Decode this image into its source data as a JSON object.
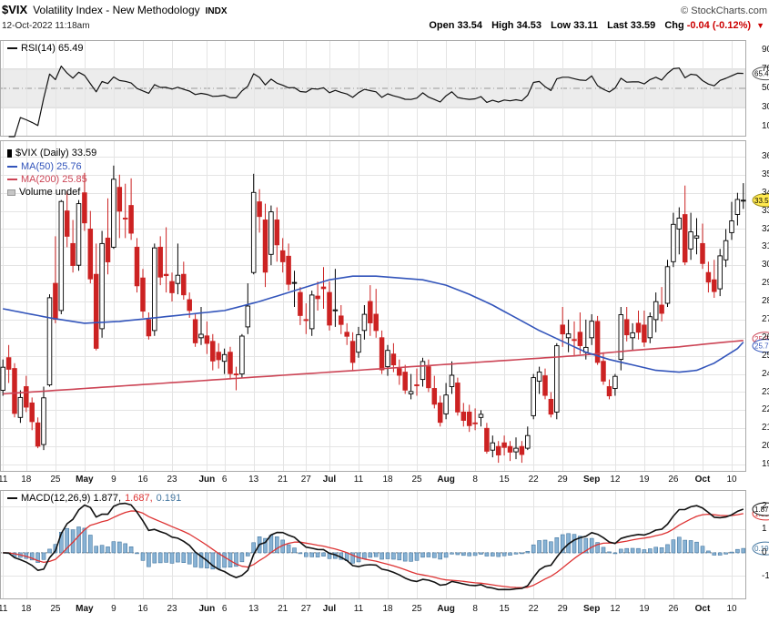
{
  "header": {
    "symbol": "$VIX",
    "name": "Volatility Index - New Methodology",
    "exchange": "INDX",
    "copyright": "© StockCharts.com",
    "timestamp": "12-Oct-2022 11:18am",
    "quote": {
      "open_label": "Open",
      "open": "33.54",
      "high_label": "High",
      "high": "34.53",
      "low_label": "Low",
      "low": "33.11",
      "last_label": "Last",
      "last": "33.59",
      "chg_label": "Chg",
      "chg": "-0.04 (-0.12%)",
      "arrow": "▼"
    }
  },
  "rsi_panel": {
    "label": "RSI(14) 65.49",
    "value": "65.49"
  },
  "main_panel": {
    "legend": {
      "series": "$VIX (Daily) 33.59",
      "ma50": "MA(50) 25.76",
      "ma200": "MA(200) 25.85",
      "volume": "Volume undef"
    },
    "last_price": "33.59",
    "ma50_value": "25.76",
    "ma200_value": "25.85"
  },
  "macd_panel": {
    "label": "MACD(12,26,9) 1.877,",
    "signal": "1.687,",
    "hist": "0.191",
    "values": [
      "1.877",
      "1.687",
      "0.191"
    ]
  },
  "colors": {
    "up": "#000000",
    "down": "#cc2222",
    "ma50": "#3355bb",
    "ma200": "#cc4455",
    "rsi": "#111111",
    "macd_line": "#111111",
    "signal": "#dd3333",
    "hist_fill": "#88b2d4",
    "hist_stroke": "#4477a1",
    "grid": "#e4e4e4",
    "band": "#ececec",
    "band_edge": "#d5d5d5",
    "mid_line": "#999999",
    "border": "#aaaaaa",
    "zero_line": "#777777",
    "last_bubble_fill": "#ffe94f",
    "last_bubble_stroke": "#a09020",
    "chg": "#cc0000"
  },
  "chart_data": {
    "type": "candlestick",
    "title": "$VIX (Daily)",
    "timeframe": "Daily",
    "indicators": {
      "rsi": "RSI(14)",
      "macd": "MACD(12,26,9)",
      "overlays": [
        "MA(50)",
        "MA(200)"
      ]
    },
    "axes": {
      "main": [
        36,
        35,
        34,
        33,
        32,
        31,
        30,
        29,
        28,
        27,
        26,
        25,
        24,
        23,
        22,
        21,
        20,
        19
      ],
      "rsi": [
        90,
        70,
        50,
        30,
        10
      ],
      "macd": [
        2,
        1,
        0,
        -1
      ],
      "rsi_band": [
        30,
        70
      ],
      "rsi_mid": 50
    },
    "x_ticks": [
      {
        "i": 0,
        "l": "11"
      },
      {
        "i": 4,
        "l": "18"
      },
      {
        "i": 9,
        "l": "25"
      },
      {
        "i": 14,
        "l": "May",
        "b": 1
      },
      {
        "i": 19,
        "l": "9"
      },
      {
        "i": 24,
        "l": "16"
      },
      {
        "i": 29,
        "l": "23"
      },
      {
        "i": 35,
        "l": "Jun",
        "b": 1
      },
      {
        "i": 38,
        "l": "6"
      },
      {
        "i": 43,
        "l": "13"
      },
      {
        "i": 48,
        "l": "21"
      },
      {
        "i": 52,
        "l": "27"
      },
      {
        "i": 56,
        "l": "Jul",
        "b": 1
      },
      {
        "i": 61,
        "l": "11"
      },
      {
        "i": 66,
        "l": "18"
      },
      {
        "i": 71,
        "l": "25"
      },
      {
        "i": 76,
        "l": "Aug",
        "b": 1
      },
      {
        "i": 81,
        "l": "8"
      },
      {
        "i": 86,
        "l": "15"
      },
      {
        "i": 91,
        "l": "22"
      },
      {
        "i": 96,
        "l": "29"
      },
      {
        "i": 101,
        "l": "Sep",
        "b": 1
      },
      {
        "i": 105,
        "l": "12"
      },
      {
        "i": 110,
        "l": "19"
      },
      {
        "i": 115,
        "l": "26"
      },
      {
        "i": 120,
        "l": "Oct",
        "b": 1
      },
      {
        "i": 125,
        "l": "10"
      }
    ],
    "overlays": {
      "ma50_points": [
        [
          0,
          27.6
        ],
        [
          8,
          27.1
        ],
        [
          14,
          26.8
        ],
        [
          20,
          26.9
        ],
        [
          26,
          27.1
        ],
        [
          32,
          27.3
        ],
        [
          38,
          27.5
        ],
        [
          44,
          28.0
        ],
        [
          50,
          28.6
        ],
        [
          56,
          29.2
        ],
        [
          60,
          29.4
        ],
        [
          64,
          29.4
        ],
        [
          68,
          29.3
        ],
        [
          72,
          29.2
        ],
        [
          76,
          28.9
        ],
        [
          80,
          28.4
        ],
        [
          84,
          27.8
        ],
        [
          88,
          27.1
        ],
        [
          92,
          26.4
        ],
        [
          96,
          25.8
        ],
        [
          100,
          25.2
        ],
        [
          104,
          24.8
        ],
        [
          108,
          24.5
        ],
        [
          112,
          24.2
        ],
        [
          116,
          24.1
        ],
        [
          119,
          24.2
        ],
        [
          122,
          24.6
        ],
        [
          124,
          25.0
        ],
        [
          126,
          25.4
        ],
        [
          127,
          25.76
        ]
      ],
      "ma200_points": [
        [
          0,
          22.9
        ],
        [
          14,
          23.2
        ],
        [
          28,
          23.5
        ],
        [
          42,
          23.8
        ],
        [
          56,
          24.1
        ],
        [
          70,
          24.4
        ],
        [
          84,
          24.7
        ],
        [
          98,
          25.0
        ],
        [
          108,
          25.3
        ],
        [
          116,
          25.5
        ],
        [
          122,
          25.7
        ],
        [
          127,
          25.85
        ]
      ]
    },
    "candles": [
      [
        "Apr 11",
        23.1,
        24.8,
        22.8,
        24.37
      ],
      [
        "Apr 12",
        24.9,
        25.6,
        23.5,
        24.26
      ],
      [
        "Apr 13",
        24.3,
        24.6,
        21.6,
        21.82
      ],
      [
        "Apr 14",
        21.6,
        23.1,
        21.3,
        22.7
      ],
      [
        "Apr 18",
        23.3,
        23.9,
        21.9,
        22.17
      ],
      [
        "Apr 19",
        22.4,
        22.7,
        20.9,
        21.37
      ],
      [
        "Apr 20",
        21.3,
        21.6,
        19.9,
        20.02
      ],
      [
        "Apr 21",
        20.1,
        23.3,
        19.8,
        22.68
      ],
      [
        "Apr 22",
        23.4,
        28.4,
        23.3,
        28.21
      ],
      [
        "Apr 25",
        29.0,
        31.6,
        26.8,
        27.02
      ],
      [
        "Apr 26",
        27.5,
        33.6,
        27.3,
        33.52
      ],
      [
        "Apr 27",
        33.0,
        34.1,
        31.0,
        31.6
      ],
      [
        "Apr 28",
        31.2,
        32.5,
        29.6,
        29.99
      ],
      [
        "Apr 29",
        30.0,
        33.6,
        29.7,
        33.4
      ],
      [
        "May 2",
        34.0,
        35.1,
        31.9,
        32.34
      ],
      [
        "May 3",
        32.0,
        33.0,
        29.0,
        29.25
      ],
      [
        "May 4",
        29.5,
        31.2,
        25.3,
        25.42
      ],
      [
        "May 5",
        26.5,
        31.9,
        26.0,
        31.2
      ],
      [
        "May 6",
        31.5,
        33.7,
        29.5,
        30.19
      ],
      [
        "May 9",
        31.0,
        35.5,
        30.9,
        34.75
      ],
      [
        "May 10",
        34.3,
        35.0,
        31.5,
        32.99
      ],
      [
        "May 11",
        32.6,
        34.5,
        31.5,
        32.56
      ],
      [
        "May 12",
        33.3,
        34.8,
        31.4,
        31.77
      ],
      [
        "May 13",
        31.0,
        31.5,
        28.5,
        28.87
      ],
      [
        "May 16",
        29.3,
        29.8,
        27.1,
        27.47
      ],
      [
        "May 17",
        27.0,
        27.4,
        25.9,
        26.1
      ],
      [
        "May 18",
        26.4,
        31.2,
        26.1,
        30.96
      ],
      [
        "May 19",
        31.0,
        31.6,
        28.9,
        29.35
      ],
      [
        "May 20",
        29.5,
        32.1,
        28.5,
        29.43
      ],
      [
        "May 23",
        29.1,
        29.6,
        28.0,
        28.48
      ],
      [
        "May 24",
        29.0,
        31.2,
        28.4,
        29.45
      ],
      [
        "May 25",
        29.5,
        30.2,
        28.1,
        28.37
      ],
      [
        "May 26",
        28.1,
        28.5,
        27.1,
        27.5
      ],
      [
        "May 27",
        27.0,
        27.3,
        25.5,
        25.72
      ],
      [
        "May 31",
        26.0,
        27.7,
        25.6,
        26.19
      ],
      [
        "Jun 1",
        26.1,
        26.9,
        25.1,
        25.69
      ],
      [
        "Jun 2",
        25.8,
        26.2,
        24.2,
        24.72
      ],
      [
        "Jun 3",
        25.2,
        25.7,
        24.3,
        24.79
      ],
      [
        "Jun 6",
        24.7,
        25.4,
        24.0,
        25.07
      ],
      [
        "Jun 7",
        25.2,
        25.5,
        23.7,
        24.02
      ],
      [
        "Jun 8",
        24.0,
        24.4,
        23.1,
        23.96
      ],
      [
        "Jun 9",
        24.0,
        26.2,
        23.8,
        26.09
      ],
      [
        "Jun 10",
        26.6,
        29.0,
        26.2,
        27.75
      ],
      [
        "Jun 13",
        29.6,
        35.05,
        29.5,
        34.02
      ],
      [
        "Jun 14",
        33.5,
        34.2,
        31.8,
        32.69
      ],
      [
        "Jun 15",
        32.5,
        33.4,
        28.8,
        29.62
      ],
      [
        "Jun 16",
        30.6,
        33.3,
        30.0,
        32.95
      ],
      [
        "Jun 17",
        32.5,
        33.2,
        30.2,
        31.13
      ],
      [
        "Jun 21",
        30.8,
        31.5,
        29.6,
        30.19
      ],
      [
        "Jun 22",
        30.5,
        31.2,
        28.6,
        28.95
      ],
      [
        "Jun 23",
        29.0,
        29.7,
        27.7,
        29.05
      ],
      [
        "Jun 24",
        28.5,
        28.8,
        26.7,
        27.23
      ],
      [
        "Jun 27",
        27.0,
        27.9,
        26.2,
        26.95
      ],
      [
        "Jun 28",
        26.5,
        28.6,
        26.1,
        28.36
      ],
      [
        "Jun 29",
        28.3,
        29.1,
        27.5,
        28.16
      ],
      [
        "Jun 30",
        28.8,
        29.9,
        27.6,
        28.71
      ],
      [
        "Jul 1",
        28.5,
        29.1,
        26.4,
        26.7
      ],
      [
        "Jul 5",
        27.5,
        29.8,
        26.6,
        27.54
      ],
      [
        "Jul 6",
        27.2,
        27.8,
        26.2,
        26.73
      ],
      [
        "Jul 7",
        26.3,
        26.8,
        25.6,
        26.08
      ],
      [
        "Jul 8",
        25.8,
        26.3,
        24.2,
        24.64
      ],
      [
        "Jul 11",
        25.2,
        26.6,
        24.9,
        26.17
      ],
      [
        "Jul 12",
        26.4,
        27.8,
        25.9,
        27.29
      ],
      [
        "Jul 13",
        28.0,
        28.9,
        26.1,
        26.82
      ],
      [
        "Jul 14",
        27.3,
        28.7,
        26.0,
        26.4
      ],
      [
        "Jul 15",
        26.0,
        26.4,
        24.0,
        24.23
      ],
      [
        "Jul 18",
        24.4,
        25.6,
        23.9,
        25.3
      ],
      [
        "Jul 19",
        25.1,
        25.7,
        24.1,
        24.5
      ],
      [
        "Jul 20",
        24.3,
        24.8,
        23.4,
        23.93
      ],
      [
        "Jul 21",
        24.1,
        24.5,
        22.9,
        23.11
      ],
      [
        "Jul 22",
        22.9,
        24.0,
        22.6,
        23.03
      ],
      [
        "Jul 25",
        23.4,
        24.3,
        22.8,
        23.36
      ],
      [
        "Jul 26",
        23.7,
        24.9,
        23.3,
        24.69
      ],
      [
        "Jul 27",
        24.4,
        24.8,
        23.0,
        23.24
      ],
      [
        "Jul 28",
        23.2,
        23.9,
        22.1,
        22.33
      ],
      [
        "Jul 29",
        22.4,
        22.8,
        21.1,
        21.33
      ],
      [
        "Aug 1",
        21.8,
        23.5,
        21.5,
        22.84
      ],
      [
        "Aug 2",
        23.3,
        24.7,
        22.9,
        23.93
      ],
      [
        "Aug 3",
        23.5,
        23.8,
        21.7,
        21.9
      ],
      [
        "Aug 4",
        21.9,
        22.4,
        21.1,
        21.44
      ],
      [
        "Aug 5",
        21.9,
        22.3,
        20.8,
        21.15
      ],
      [
        "Aug 8",
        21.3,
        22.1,
        20.9,
        21.29
      ],
      [
        "Aug 9",
        21.6,
        22.0,
        21.1,
        21.77
      ],
      [
        "Aug 10",
        21.0,
        21.3,
        19.6,
        19.74
      ],
      [
        "Aug 11",
        19.8,
        20.6,
        19.4,
        20.2
      ],
      [
        "Aug 12",
        20.0,
        20.3,
        19.1,
        19.53
      ],
      [
        "Aug 15",
        20.2,
        20.6,
        19.5,
        19.95
      ],
      [
        "Aug 16",
        20.0,
        20.3,
        19.2,
        19.69
      ],
      [
        "Aug 17",
        19.7,
        20.5,
        19.3,
        19.9
      ],
      [
        "Aug 18",
        20.0,
        20.3,
        19.1,
        19.56
      ],
      [
        "Aug 19",
        19.9,
        21.1,
        19.8,
        20.6
      ],
      [
        "Aug 22",
        21.7,
        24.0,
        21.5,
        23.8
      ],
      [
        "Aug 23",
        23.6,
        24.4,
        22.9,
        24.11
      ],
      [
        "Aug 24",
        23.9,
        24.3,
        22.6,
        22.82
      ],
      [
        "Aug 25",
        22.6,
        23.0,
        21.6,
        21.78
      ],
      [
        "Aug 26",
        21.9,
        25.7,
        21.5,
        25.56
      ],
      [
        "Aug 29",
        26.7,
        27.7,
        25.5,
        26.21
      ],
      [
        "Aug 30",
        26.0,
        27.0,
        25.2,
        26.21
      ],
      [
        "Aug 31",
        25.9,
        26.9,
        25.0,
        25.87
      ],
      [
        "Sep 1",
        26.3,
        27.4,
        25.1,
        25.56
      ],
      [
        "Sep 2",
        25.2,
        27.0,
        24.8,
        25.47
      ],
      [
        "Sep 6",
        26.0,
        27.3,
        25.6,
        26.91
      ],
      [
        "Sep 7",
        26.9,
        27.2,
        24.5,
        24.64
      ],
      [
        "Sep 8",
        24.7,
        25.2,
        23.4,
        23.61
      ],
      [
        "Sep 9",
        23.3,
        23.7,
        22.6,
        22.79
      ],
      [
        "Sep 12",
        23.2,
        24.0,
        22.8,
        23.87
      ],
      [
        "Sep 13",
        24.8,
        27.7,
        24.2,
        27.27
      ],
      [
        "Sep 14",
        27.0,
        27.7,
        25.8,
        26.16
      ],
      [
        "Sep 15",
        26.0,
        26.8,
        25.3,
        26.27
      ],
      [
        "Sep 16",
        26.8,
        27.5,
        25.9,
        26.3
      ],
      [
        "Sep 19",
        26.7,
        27.5,
        25.5,
        25.76
      ],
      [
        "Sep 20",
        26.0,
        27.4,
        25.7,
        27.16
      ],
      [
        "Sep 21",
        27.0,
        28.5,
        26.3,
        27.99
      ],
      [
        "Sep 22",
        27.8,
        28.8,
        26.9,
        27.35
      ],
      [
        "Sep 23",
        27.9,
        30.3,
        27.7,
        29.92
      ],
      [
        "Sep 26",
        30.2,
        32.9,
        29.9,
        32.26
      ],
      [
        "Sep 27",
        32.0,
        33.2,
        30.6,
        32.6
      ],
      [
        "Sep 28",
        32.8,
        34.4,
        30.0,
        30.18
      ],
      [
        "Sep 29",
        30.9,
        32.9,
        30.3,
        31.84
      ],
      [
        "Sep 30",
        31.5,
        32.6,
        30.6,
        31.62
      ],
      [
        "Oct 3",
        31.2,
        32.3,
        29.8,
        30.1
      ],
      [
        "Oct 4",
        29.6,
        30.2,
        28.5,
        29.07
      ],
      [
        "Oct 5",
        29.2,
        30.3,
        28.2,
        28.55
      ],
      [
        "Oct 6",
        28.7,
        30.9,
        28.3,
        30.52
      ],
      [
        "Oct 7",
        30.3,
        32.0,
        29.9,
        31.36
      ],
      [
        "Oct 10",
        31.8,
        33.5,
        31.4,
        32.45
      ],
      [
        "Oct 11",
        32.8,
        34.0,
        32.2,
        33.63
      ],
      [
        "Oct 12",
        33.54,
        34.53,
        33.11,
        33.59
      ]
    ]
  }
}
